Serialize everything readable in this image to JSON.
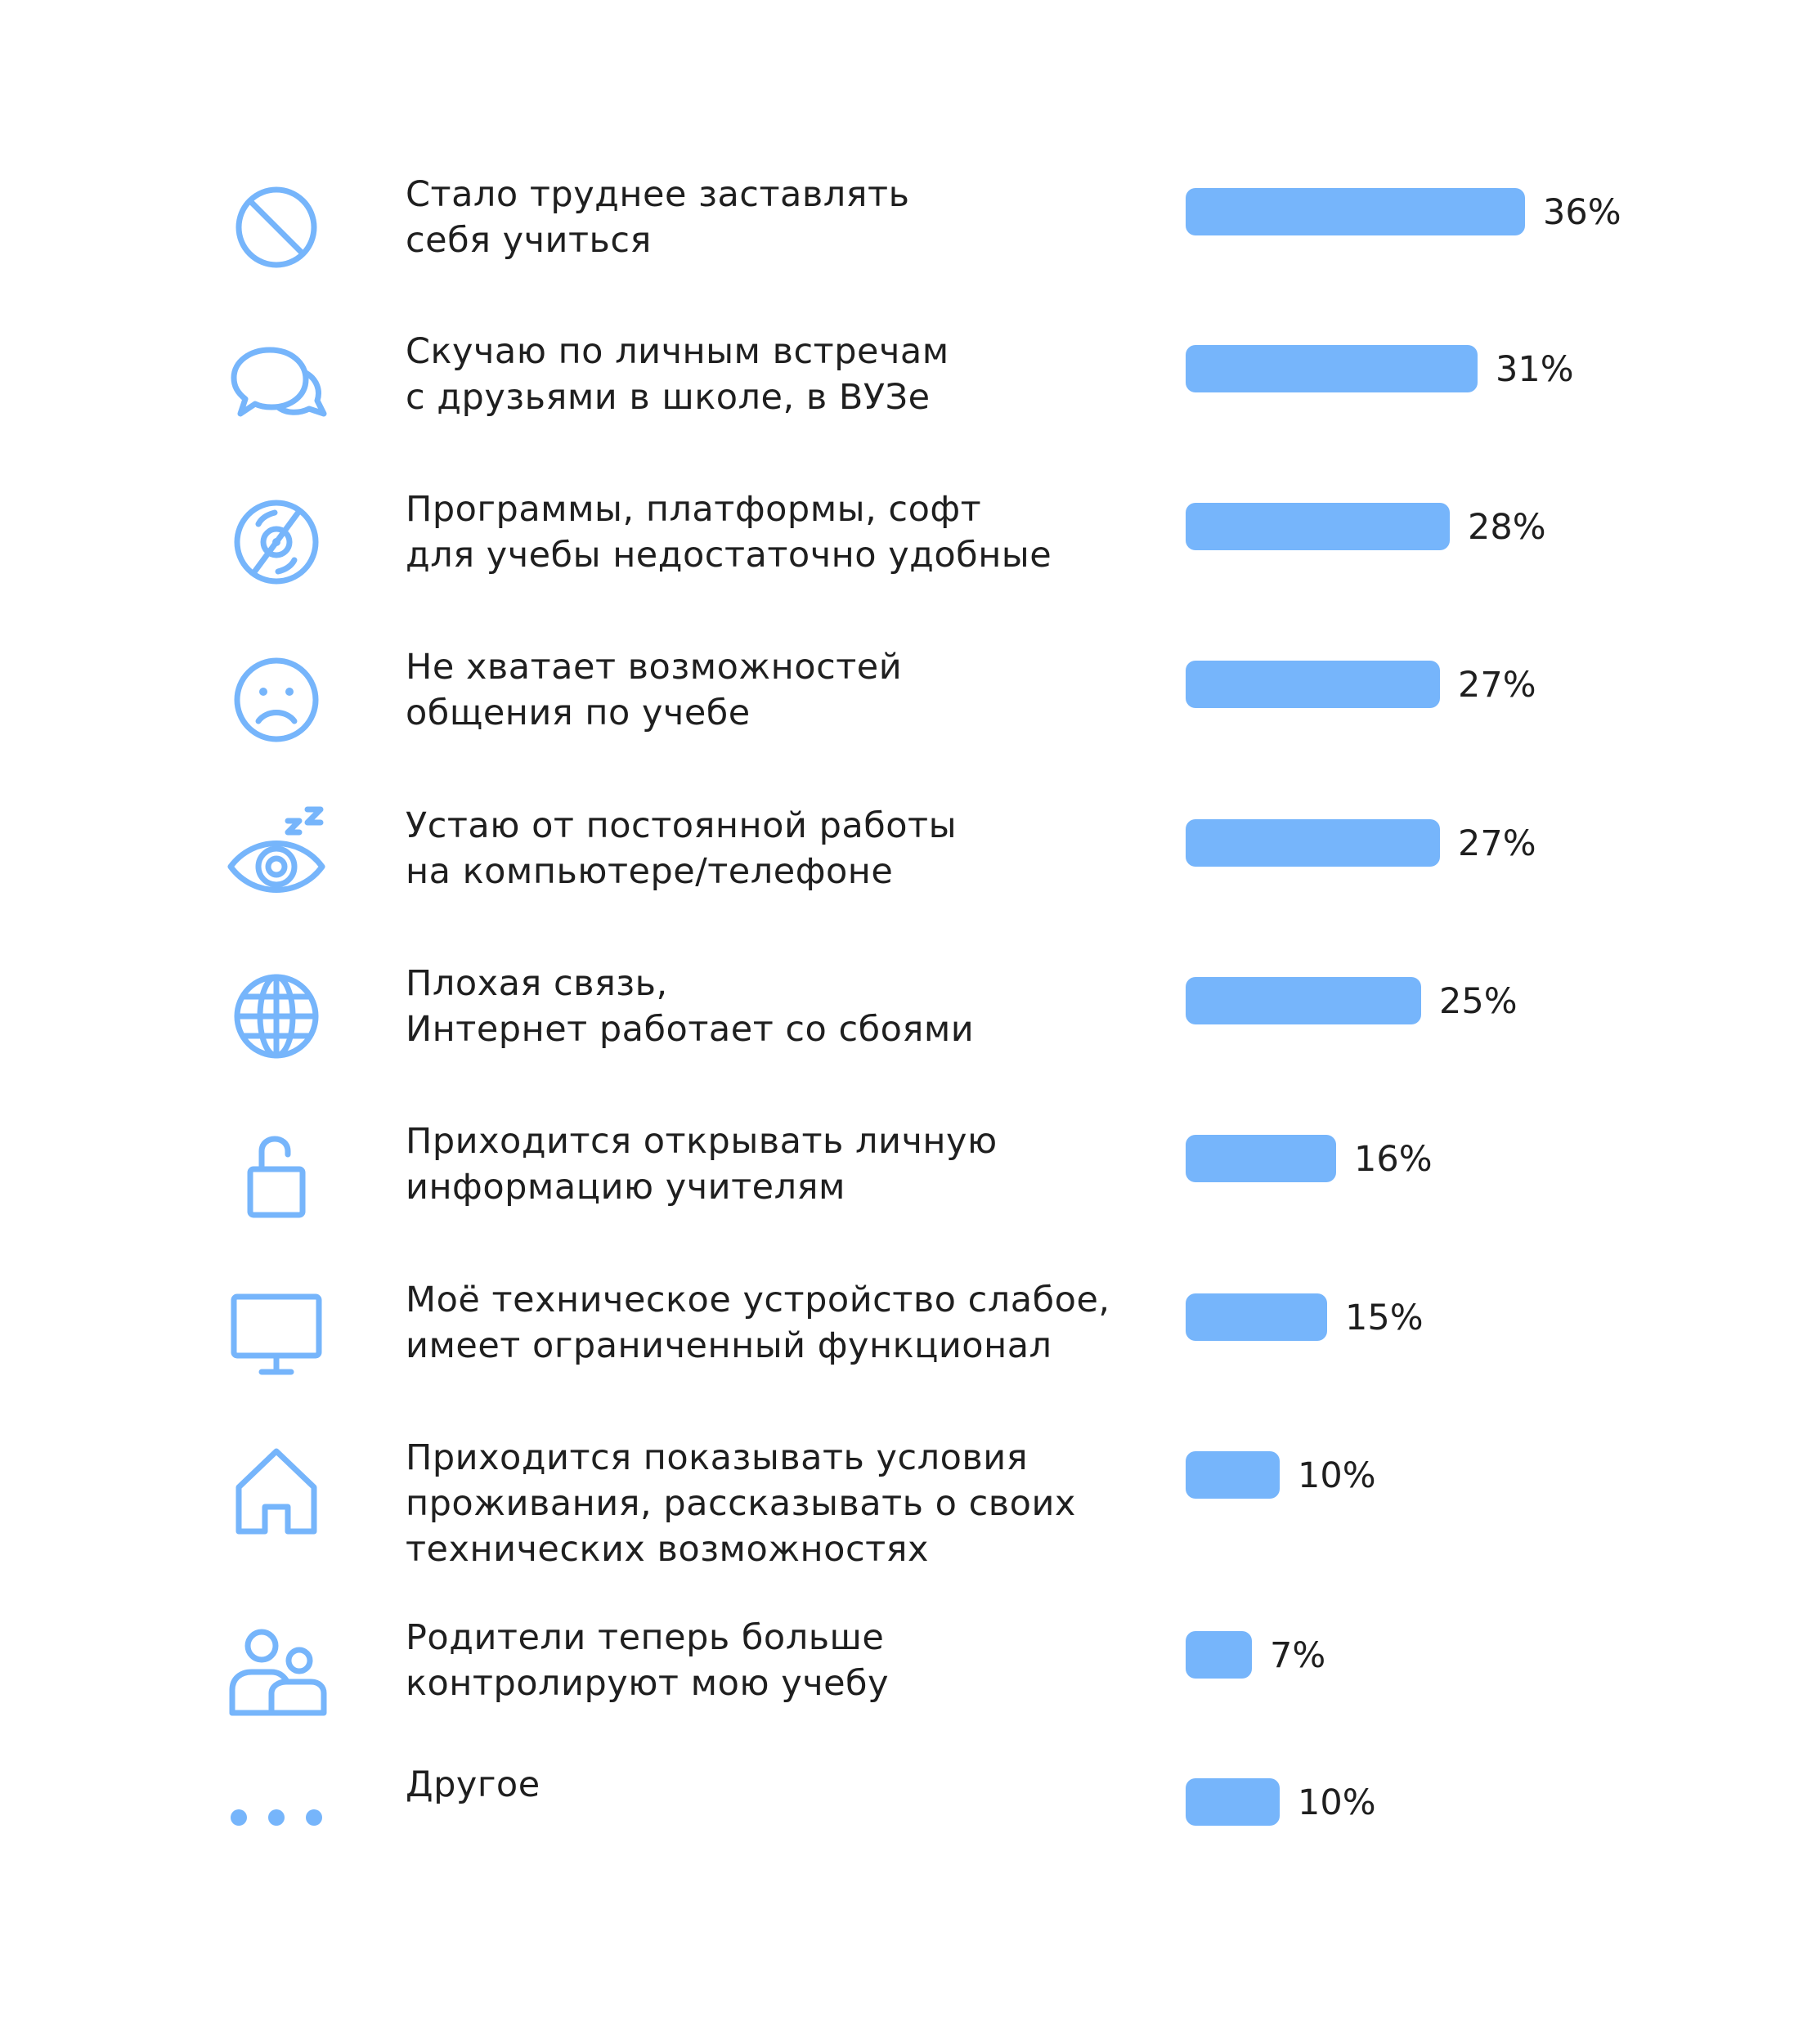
{
  "colors": {
    "accent": "#76b5fb",
    "text": "#1f1f1f",
    "background": "#ffffff"
  },
  "chart_data": {
    "type": "bar",
    "orientation": "horizontal",
    "unit": "%",
    "value_labels": [
      "36%",
      "31%",
      "28%",
      "27%",
      "27%",
      "25%",
      "16%",
      "15%",
      "10%",
      "7%",
      "10%"
    ],
    "categories": [
      "Стало труднее заставлять\nсебя учиться",
      "Скучаю по личным встречам\nс друзьями в школе, в ВУЗе",
      "Программы, платформы, софт\nдля учебы недостаточно удобные",
      "Не хватает возможностей\nобщения по учебе",
      "Устаю от постоянной работы\nна компьютере/телефоне",
      "Плохая связь,\nИнтернет работает со сбоями",
      "Приходится открывать личную\nинформацию учителям",
      "Моё техническое устройство слабое,\nимеет ограниченный функционал",
      "Приходится показывать условия\nпроживания, рассказывать о своих\nтехнических возможностях",
      "Родители теперь больше\nконтролируют мою учебу",
      "Другое"
    ],
    "values": [
      36,
      31,
      28,
      27,
      27,
      25,
      16,
      15,
      10,
      7,
      10
    ],
    "icons": [
      "no-entry-icon",
      "chat-bubbles-icon",
      "disc-icon",
      "sad-face-icon",
      "tired-eye-icon",
      "globe-icon",
      "unlocked-padlock-icon",
      "monitor-icon",
      "house-icon",
      "family-icon",
      "more-dots-icon"
    ],
    "xlim": [
      0,
      36
    ],
    "grid": false,
    "legend": "none"
  }
}
